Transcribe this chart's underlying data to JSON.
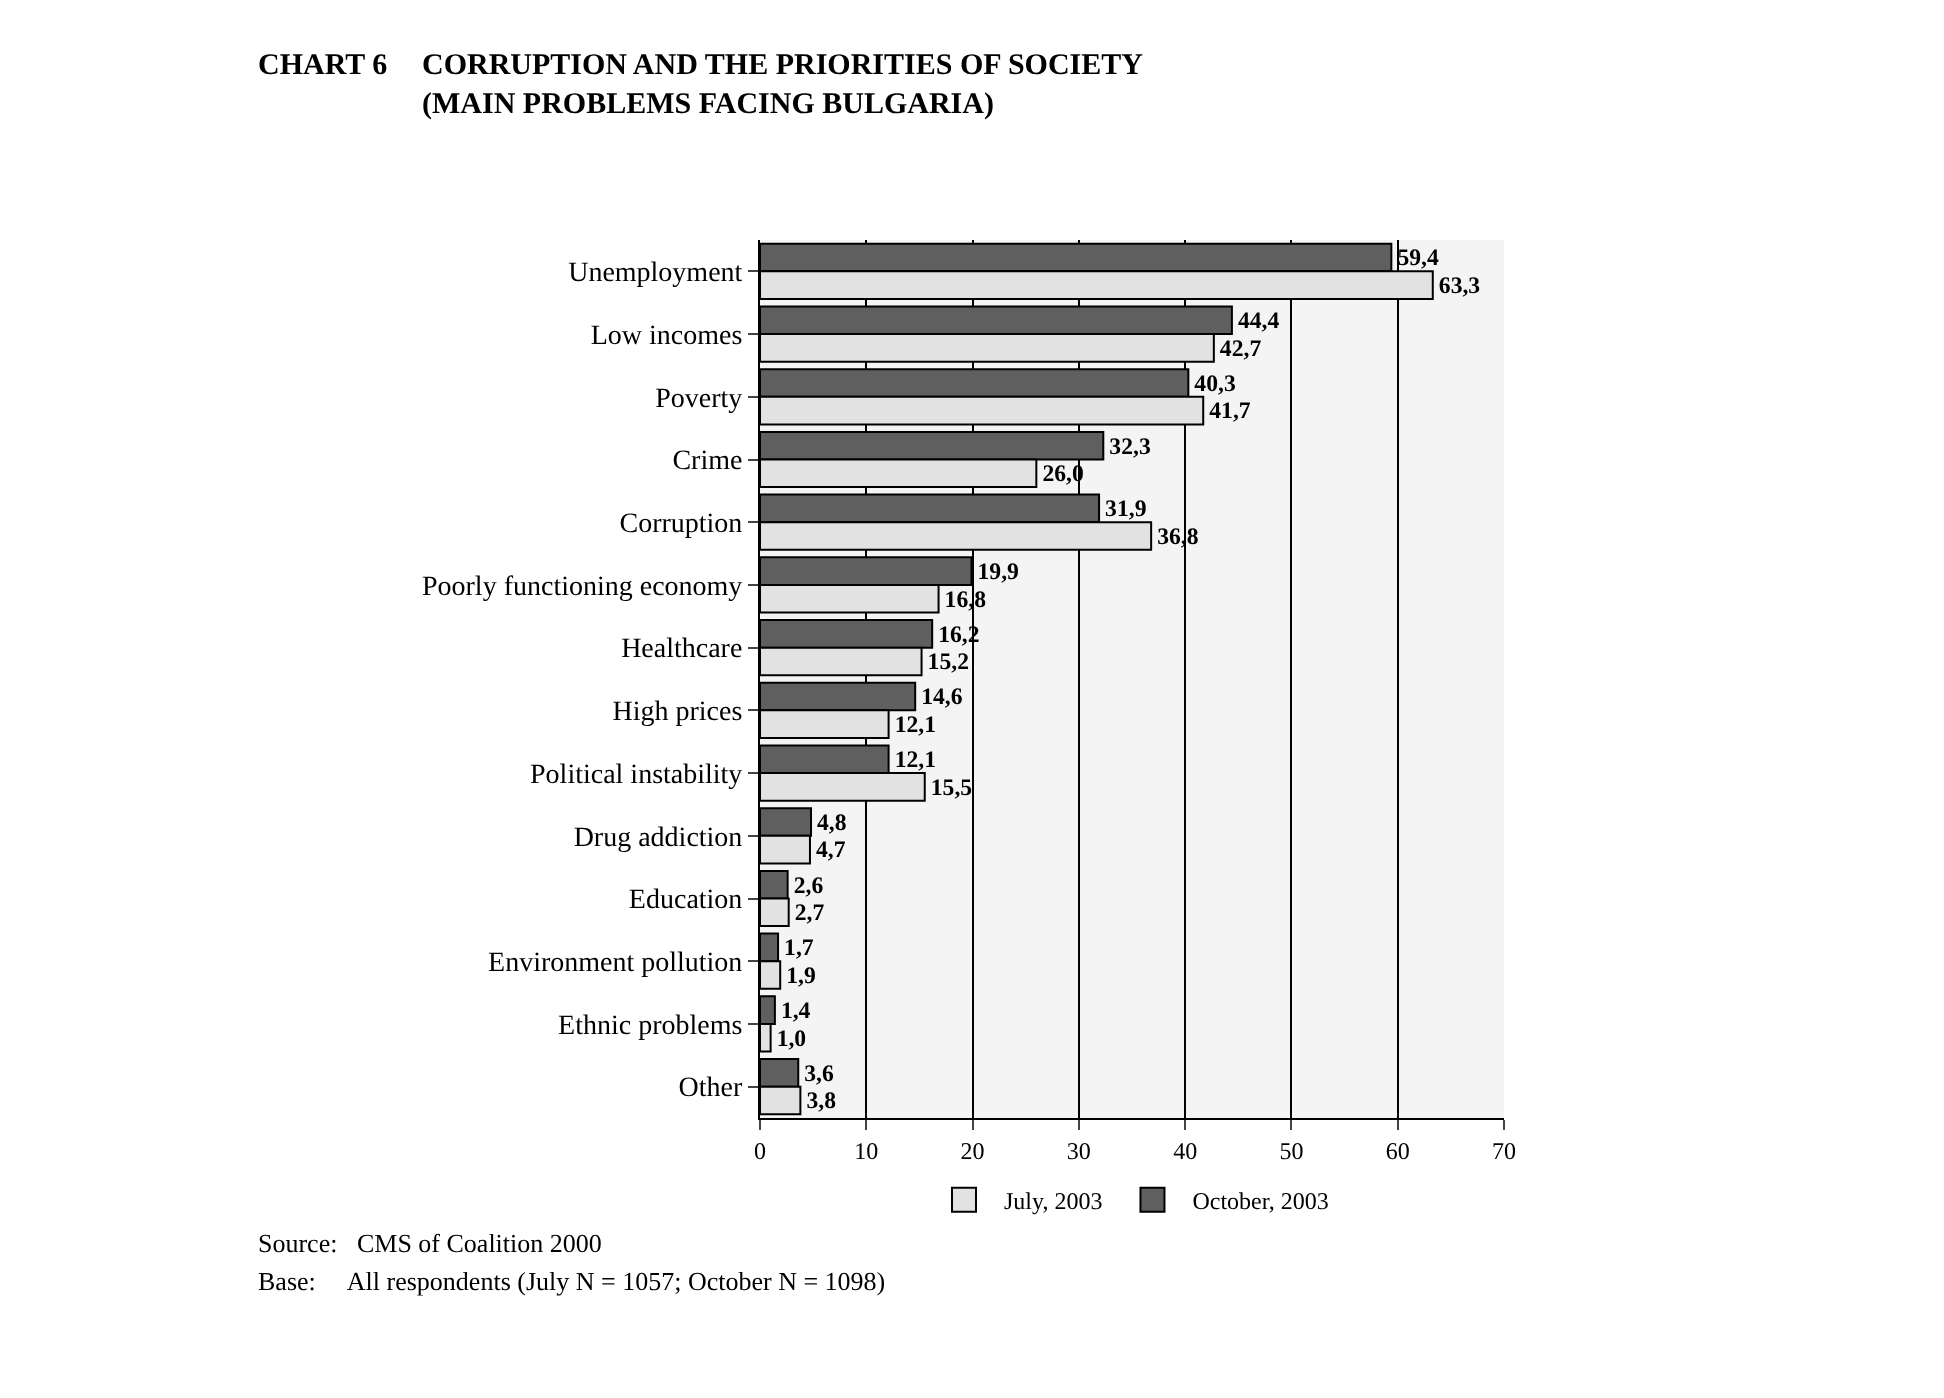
{
  "chart_data": {
    "type": "bar",
    "orientation": "horizontal",
    "title": "CHART 6",
    "subtitle": "CORRUPTION AND THE PRIORITIES OF SOCIETY (MAIN PROBLEMS FACING BULGARIA)",
    "categories": [
      "Unemployment",
      "Low incomes",
      "Poverty",
      "Crime",
      "Corruption",
      "Poorly functioning economy",
      "Healthcare",
      "High prices",
      "Political instability",
      "Drug addiction",
      "Education",
      "Environment pollution",
      "Ethnic problems",
      "Other"
    ],
    "series": [
      {
        "name": "October, 2003",
        "color": "#5f5f5f",
        "values": [
          59.4,
          44.4,
          40.3,
          32.3,
          31.9,
          19.9,
          16.2,
          14.6,
          12.1,
          4.8,
          2.6,
          1.7,
          1.4,
          3.6
        ],
        "value_labels": [
          "59,4",
          "44,4",
          "40,3",
          "32,3",
          "31,9",
          "19,9",
          "16,2",
          "14,6",
          "12,1",
          "4,8",
          "2,6",
          "1,7",
          "1,4",
          "3,6"
        ]
      },
      {
        "name": "July, 2003",
        "color": "#e2e2e2",
        "values": [
          63.3,
          42.7,
          41.7,
          26.0,
          36.8,
          16.8,
          15.2,
          12.1,
          15.5,
          4.7,
          2.7,
          1.9,
          1.0,
          3.8
        ],
        "value_labels": [
          "63,3",
          "42,7",
          "41,7",
          "26,0",
          "36,8",
          "16,8",
          "15,2",
          "12,1",
          "15,5",
          "4,7",
          "2,7",
          "1,9",
          "1,0",
          "3,8"
        ]
      }
    ],
    "xlim": [
      0,
      70
    ],
    "xticks": [
      0,
      10,
      20,
      30,
      40,
      50,
      60,
      70
    ],
    "grid": "x",
    "legend": "bottom",
    "annotations": [
      "Source:   CMS of Coalition 2000",
      "Base:     All respondents (July N = 1057; October N = 1098)"
    ]
  }
}
